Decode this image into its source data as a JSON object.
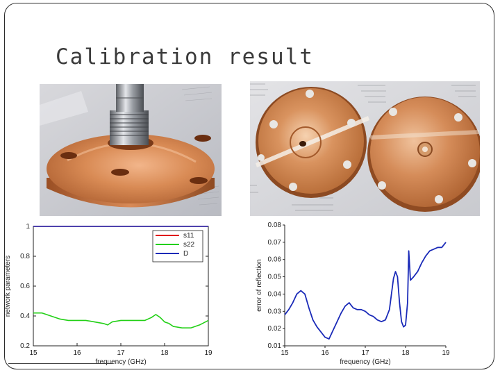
{
  "slide": {
    "title": "Calibration result"
  },
  "photos": [
    {
      "subject": "copper-flange-with-connector"
    },
    {
      "subject": "two-copper-discs"
    }
  ],
  "chart_data": [
    {
      "type": "line",
      "title": "",
      "xlabel": "frequency (GHz)",
      "ylabel": "network parameters",
      "xlim": [
        15,
        19
      ],
      "ylim": [
        0.2,
        1
      ],
      "xticks": [
        "15",
        "16",
        "17",
        "18",
        "19"
      ],
      "yticks": [
        "0.2",
        "0.4",
        "0.6",
        "0.8",
        "1"
      ],
      "legend_position": "top-right",
      "series": [
        {
          "name": "s11",
          "color": "#e0191b",
          "x": [
            15,
            19
          ],
          "y": [
            1.0,
            1.0
          ]
        },
        {
          "name": "s22",
          "color": "#22d016",
          "x": [
            15,
            15.2,
            15.4,
            15.6,
            15.8,
            16.0,
            16.2,
            16.4,
            16.6,
            16.7,
            16.8,
            17.0,
            17.2,
            17.4,
            17.55,
            17.7,
            17.8,
            17.9,
            18.0,
            18.1,
            18.2,
            18.4,
            18.6,
            18.8,
            19.0
          ],
          "y": [
            0.42,
            0.42,
            0.4,
            0.38,
            0.37,
            0.37,
            0.37,
            0.36,
            0.35,
            0.34,
            0.36,
            0.37,
            0.37,
            0.37,
            0.37,
            0.39,
            0.41,
            0.39,
            0.36,
            0.35,
            0.33,
            0.32,
            0.32,
            0.34,
            0.37
          ]
        },
        {
          "name": "D",
          "color": "#1a2ab8",
          "x": [
            15,
            19
          ],
          "y": [
            1.0,
            1.0
          ]
        }
      ]
    },
    {
      "type": "line",
      "title": "",
      "xlabel": "frequency (GHz)",
      "ylabel": "error of reflection",
      "xlim": [
        15,
        19
      ],
      "ylim": [
        0.01,
        0.08
      ],
      "xticks": [
        "15",
        "16",
        "17",
        "18",
        "19"
      ],
      "yticks": [
        "0.01",
        "0.02",
        "0.03",
        "0.04",
        "0.05",
        "0.06",
        "0.07",
        "0.08"
      ],
      "series": [
        {
          "name": "error",
          "color": "#1a2ab8",
          "x": [
            15.0,
            15.1,
            15.2,
            15.3,
            15.4,
            15.5,
            15.6,
            15.7,
            15.8,
            15.9,
            16.0,
            16.1,
            16.2,
            16.3,
            16.4,
            16.5,
            16.6,
            16.7,
            16.8,
            16.9,
            17.0,
            17.1,
            17.2,
            17.3,
            17.4,
            17.5,
            17.6,
            17.7,
            17.75,
            17.8,
            17.85,
            17.9,
            17.95,
            18.0,
            18.05,
            18.08,
            18.12,
            18.2,
            18.3,
            18.4,
            18.5,
            18.6,
            18.7,
            18.8,
            18.9,
            19.0
          ],
          "y": [
            0.028,
            0.031,
            0.035,
            0.04,
            0.042,
            0.04,
            0.032,
            0.025,
            0.021,
            0.018,
            0.015,
            0.014,
            0.019,
            0.024,
            0.029,
            0.033,
            0.035,
            0.032,
            0.031,
            0.031,
            0.03,
            0.028,
            0.027,
            0.025,
            0.024,
            0.025,
            0.031,
            0.049,
            0.053,
            0.05,
            0.035,
            0.024,
            0.021,
            0.022,
            0.035,
            0.065,
            0.048,
            0.05,
            0.053,
            0.058,
            0.062,
            0.065,
            0.066,
            0.067,
            0.067,
            0.07
          ]
        }
      ]
    }
  ]
}
